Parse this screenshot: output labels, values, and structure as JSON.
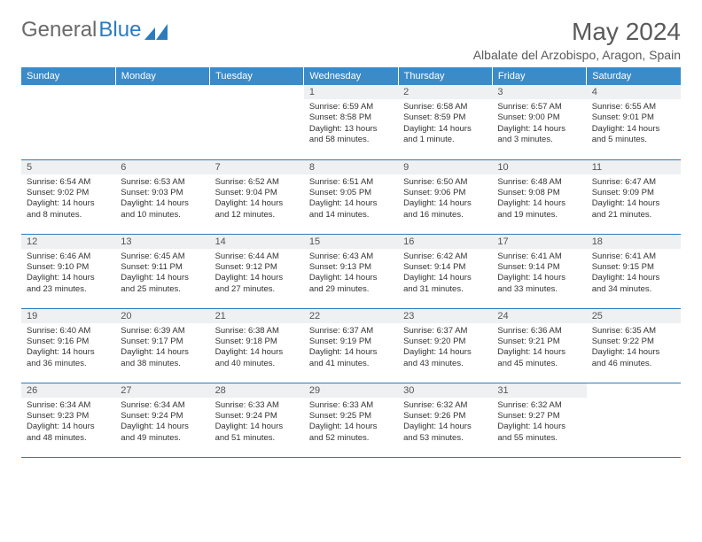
{
  "brand": {
    "text1": "General",
    "text2": "Blue"
  },
  "title": "May 2024",
  "location": "Albalate del Arzobispo, Aragon, Spain",
  "colors": {
    "header_bg": "#3b8bc9",
    "header_text": "#ffffff",
    "daynum_bg": "#eef0f1",
    "border": "#2c7bbf",
    "brand_gray": "#6a6a6a",
    "brand_blue": "#2c7bbf",
    "body_text": "#333333"
  },
  "daynames": [
    "Sunday",
    "Monday",
    "Tuesday",
    "Wednesday",
    "Thursday",
    "Friday",
    "Saturday"
  ],
  "weeks": [
    [
      {
        "empty": true
      },
      {
        "empty": true
      },
      {
        "empty": true
      },
      {
        "n": "1",
        "sr": "Sunrise: 6:59 AM",
        "ss": "Sunset: 8:58 PM",
        "dl": "Daylight: 13 hours and 58 minutes."
      },
      {
        "n": "2",
        "sr": "Sunrise: 6:58 AM",
        "ss": "Sunset: 8:59 PM",
        "dl": "Daylight: 14 hours and 1 minute."
      },
      {
        "n": "3",
        "sr": "Sunrise: 6:57 AM",
        "ss": "Sunset: 9:00 PM",
        "dl": "Daylight: 14 hours and 3 minutes."
      },
      {
        "n": "4",
        "sr": "Sunrise: 6:55 AM",
        "ss": "Sunset: 9:01 PM",
        "dl": "Daylight: 14 hours and 5 minutes."
      }
    ],
    [
      {
        "n": "5",
        "sr": "Sunrise: 6:54 AM",
        "ss": "Sunset: 9:02 PM",
        "dl": "Daylight: 14 hours and 8 minutes."
      },
      {
        "n": "6",
        "sr": "Sunrise: 6:53 AM",
        "ss": "Sunset: 9:03 PM",
        "dl": "Daylight: 14 hours and 10 minutes."
      },
      {
        "n": "7",
        "sr": "Sunrise: 6:52 AM",
        "ss": "Sunset: 9:04 PM",
        "dl": "Daylight: 14 hours and 12 minutes."
      },
      {
        "n": "8",
        "sr": "Sunrise: 6:51 AM",
        "ss": "Sunset: 9:05 PM",
        "dl": "Daylight: 14 hours and 14 minutes."
      },
      {
        "n": "9",
        "sr": "Sunrise: 6:50 AM",
        "ss": "Sunset: 9:06 PM",
        "dl": "Daylight: 14 hours and 16 minutes."
      },
      {
        "n": "10",
        "sr": "Sunrise: 6:48 AM",
        "ss": "Sunset: 9:08 PM",
        "dl": "Daylight: 14 hours and 19 minutes."
      },
      {
        "n": "11",
        "sr": "Sunrise: 6:47 AM",
        "ss": "Sunset: 9:09 PM",
        "dl": "Daylight: 14 hours and 21 minutes."
      }
    ],
    [
      {
        "n": "12",
        "sr": "Sunrise: 6:46 AM",
        "ss": "Sunset: 9:10 PM",
        "dl": "Daylight: 14 hours and 23 minutes."
      },
      {
        "n": "13",
        "sr": "Sunrise: 6:45 AM",
        "ss": "Sunset: 9:11 PM",
        "dl": "Daylight: 14 hours and 25 minutes."
      },
      {
        "n": "14",
        "sr": "Sunrise: 6:44 AM",
        "ss": "Sunset: 9:12 PM",
        "dl": "Daylight: 14 hours and 27 minutes."
      },
      {
        "n": "15",
        "sr": "Sunrise: 6:43 AM",
        "ss": "Sunset: 9:13 PM",
        "dl": "Daylight: 14 hours and 29 minutes."
      },
      {
        "n": "16",
        "sr": "Sunrise: 6:42 AM",
        "ss": "Sunset: 9:14 PM",
        "dl": "Daylight: 14 hours and 31 minutes."
      },
      {
        "n": "17",
        "sr": "Sunrise: 6:41 AM",
        "ss": "Sunset: 9:14 PM",
        "dl": "Daylight: 14 hours and 33 minutes."
      },
      {
        "n": "18",
        "sr": "Sunrise: 6:41 AM",
        "ss": "Sunset: 9:15 PM",
        "dl": "Daylight: 14 hours and 34 minutes."
      }
    ],
    [
      {
        "n": "19",
        "sr": "Sunrise: 6:40 AM",
        "ss": "Sunset: 9:16 PM",
        "dl": "Daylight: 14 hours and 36 minutes."
      },
      {
        "n": "20",
        "sr": "Sunrise: 6:39 AM",
        "ss": "Sunset: 9:17 PM",
        "dl": "Daylight: 14 hours and 38 minutes."
      },
      {
        "n": "21",
        "sr": "Sunrise: 6:38 AM",
        "ss": "Sunset: 9:18 PM",
        "dl": "Daylight: 14 hours and 40 minutes."
      },
      {
        "n": "22",
        "sr": "Sunrise: 6:37 AM",
        "ss": "Sunset: 9:19 PM",
        "dl": "Daylight: 14 hours and 41 minutes."
      },
      {
        "n": "23",
        "sr": "Sunrise: 6:37 AM",
        "ss": "Sunset: 9:20 PM",
        "dl": "Daylight: 14 hours and 43 minutes."
      },
      {
        "n": "24",
        "sr": "Sunrise: 6:36 AM",
        "ss": "Sunset: 9:21 PM",
        "dl": "Daylight: 14 hours and 45 minutes."
      },
      {
        "n": "25",
        "sr": "Sunrise: 6:35 AM",
        "ss": "Sunset: 9:22 PM",
        "dl": "Daylight: 14 hours and 46 minutes."
      }
    ],
    [
      {
        "n": "26",
        "sr": "Sunrise: 6:34 AM",
        "ss": "Sunset: 9:23 PM",
        "dl": "Daylight: 14 hours and 48 minutes."
      },
      {
        "n": "27",
        "sr": "Sunrise: 6:34 AM",
        "ss": "Sunset: 9:24 PM",
        "dl": "Daylight: 14 hours and 49 minutes."
      },
      {
        "n": "28",
        "sr": "Sunrise: 6:33 AM",
        "ss": "Sunset: 9:24 PM",
        "dl": "Daylight: 14 hours and 51 minutes."
      },
      {
        "n": "29",
        "sr": "Sunrise: 6:33 AM",
        "ss": "Sunset: 9:25 PM",
        "dl": "Daylight: 14 hours and 52 minutes."
      },
      {
        "n": "30",
        "sr": "Sunrise: 6:32 AM",
        "ss": "Sunset: 9:26 PM",
        "dl": "Daylight: 14 hours and 53 minutes."
      },
      {
        "n": "31",
        "sr": "Sunrise: 6:32 AM",
        "ss": "Sunset: 9:27 PM",
        "dl": "Daylight: 14 hours and 55 minutes."
      },
      {
        "empty": true
      }
    ]
  ]
}
